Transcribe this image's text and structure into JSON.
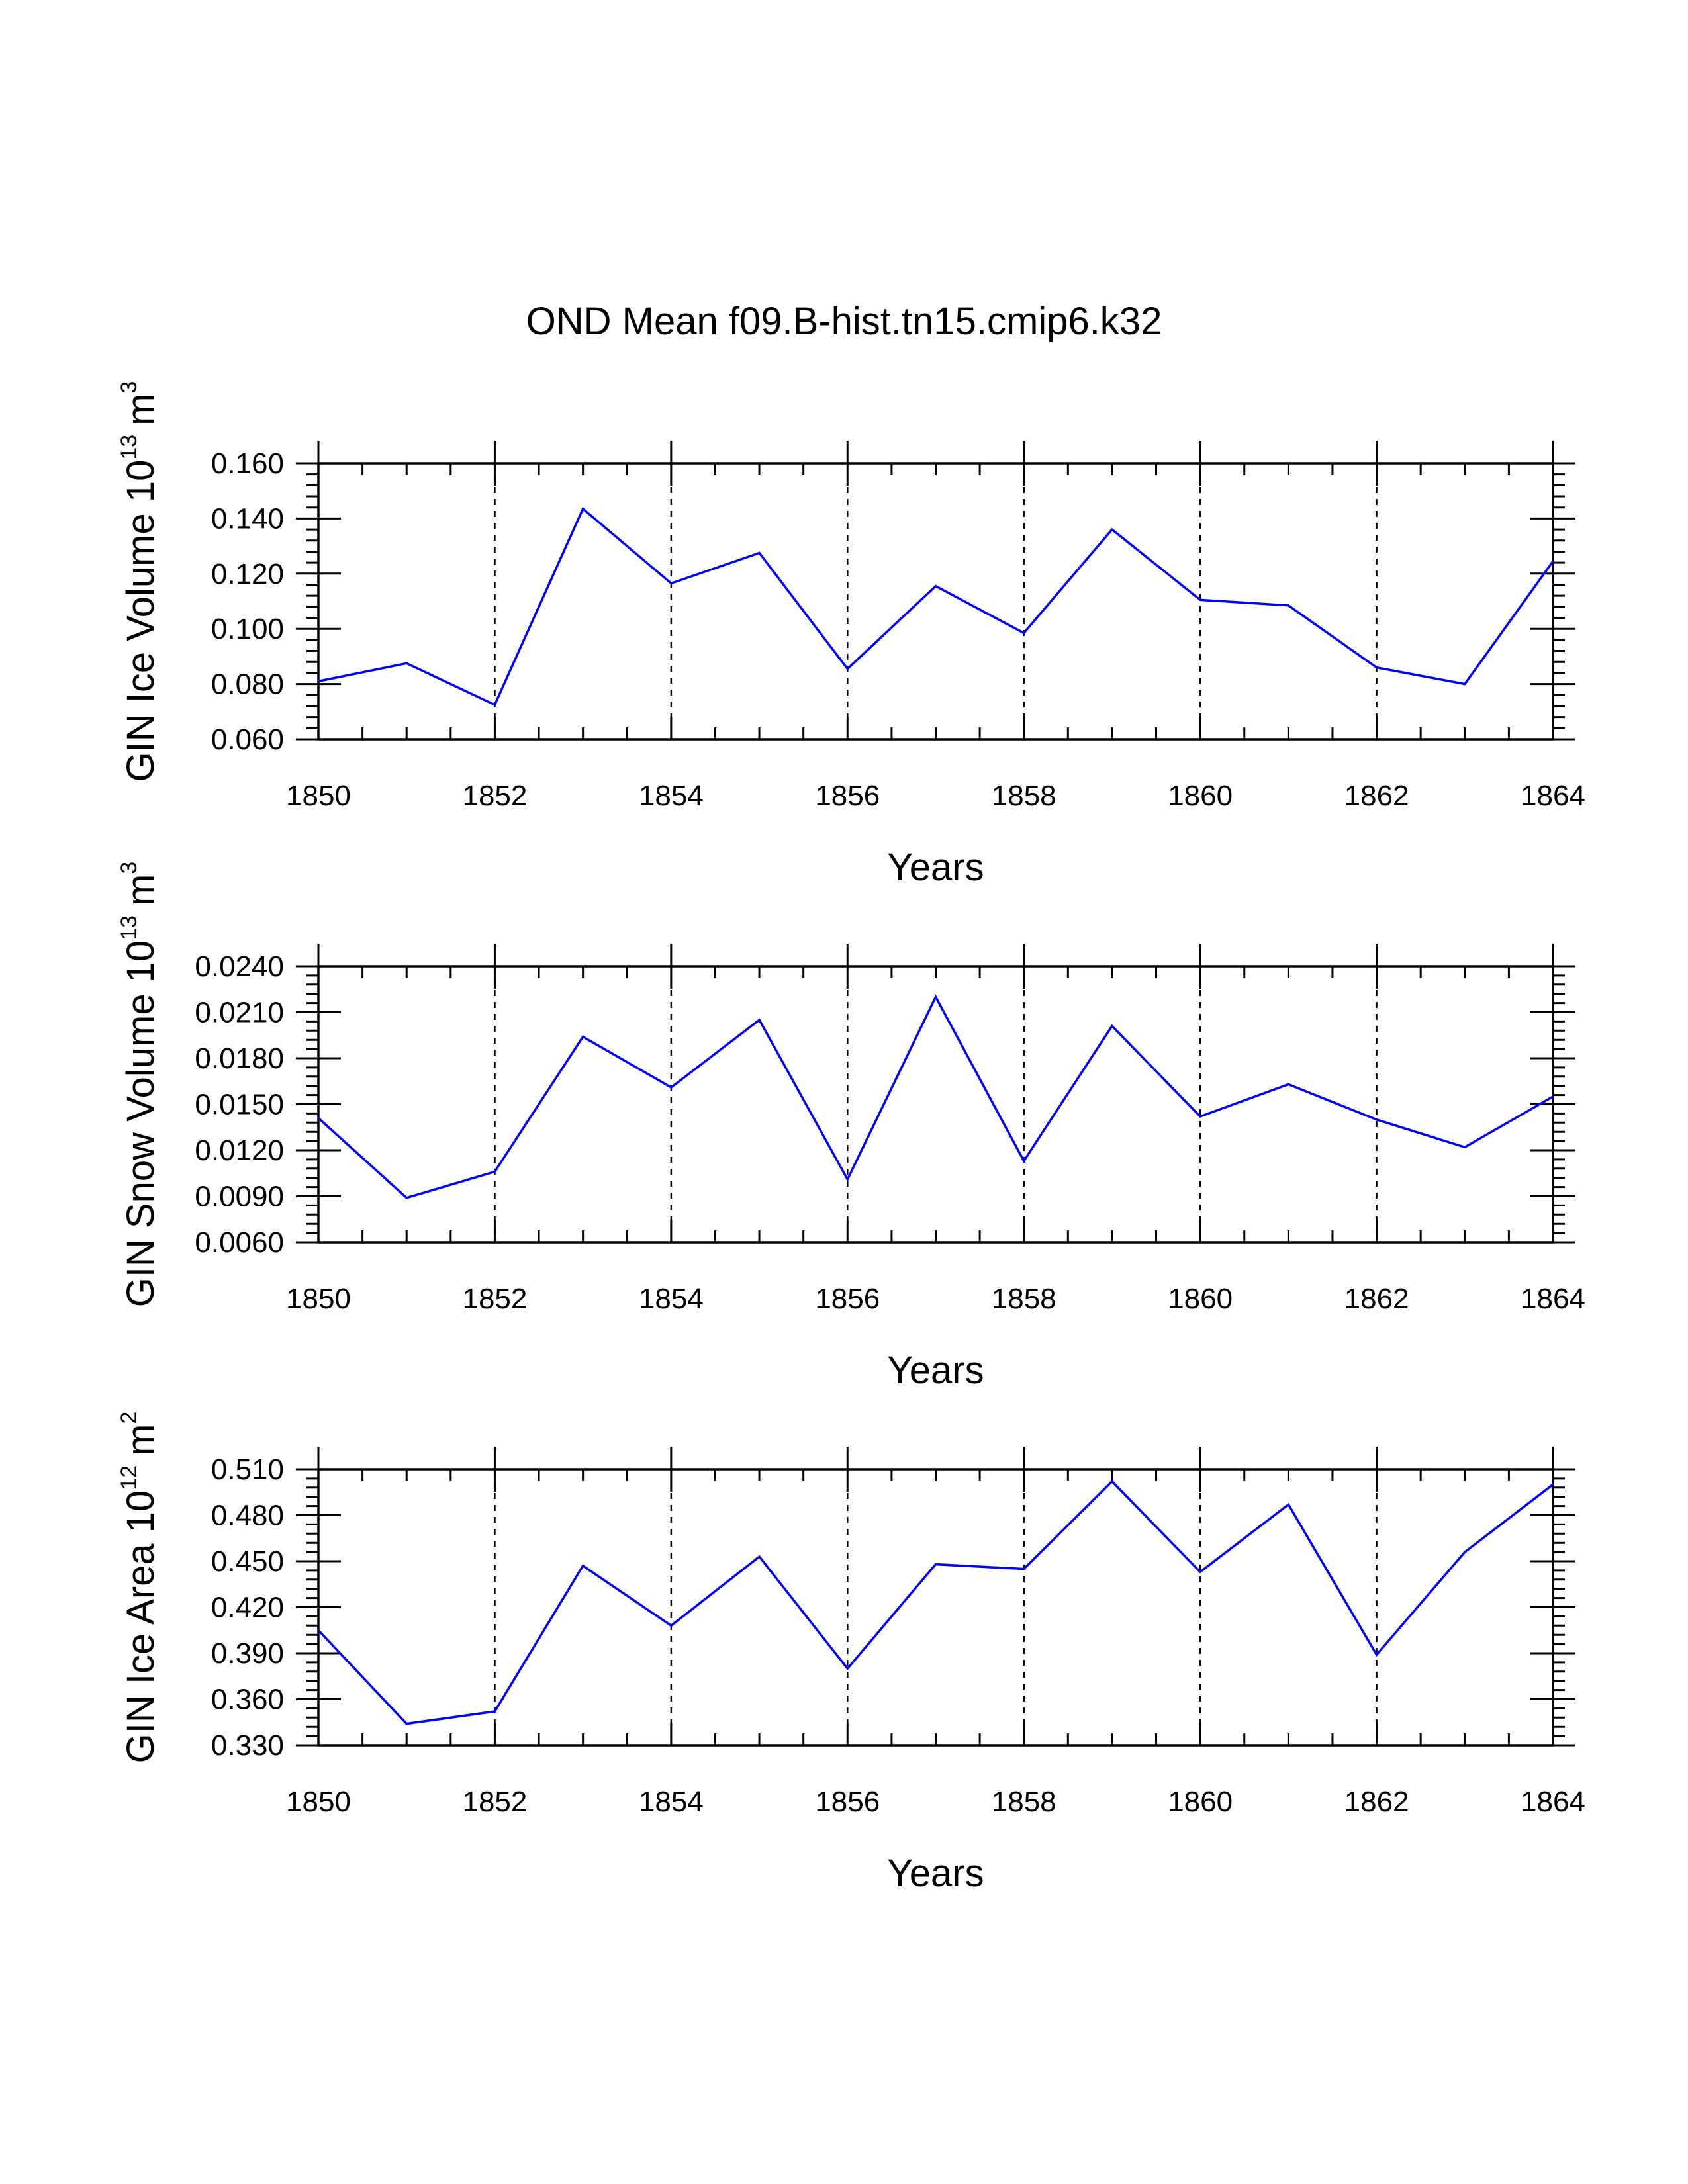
{
  "figure": {
    "title": "OND Mean f09.B-hist.tn15.cmip6.k32"
  },
  "chart_data": [
    {
      "type": "line",
      "title": "",
      "xlabel": "Years",
      "ylabel": {
        "base": "GIN Ice Volume 10",
        "exponent": "13",
        "unit": "m",
        "unit_exponent": "3"
      },
      "x": [
        1850,
        1851,
        1852,
        1853,
        1854,
        1855,
        1856,
        1857,
        1858,
        1859,
        1860,
        1861,
        1862,
        1863,
        1864
      ],
      "series": [
        {
          "name": "GIN Ice Volume",
          "color": "#0000ff",
          "values": [
            0.081,
            0.0875,
            0.0725,
            0.1435,
            0.1165,
            0.1275,
            0.0855,
            0.1155,
            0.0985,
            0.136,
            0.1105,
            0.1085,
            0.086,
            0.08,
            0.1245
          ]
        }
      ],
      "xlim": [
        1850,
        1864
      ],
      "ylim": [
        0.06,
        0.16
      ],
      "xticks": [
        "1850",
        "1852",
        "1854",
        "1856",
        "1858",
        "1860",
        "1862",
        "1864"
      ],
      "yticks": [
        "0.060",
        "0.080",
        "0.100",
        "0.120",
        "0.140",
        "0.160"
      ],
      "ytick_values": [
        0.06,
        0.08,
        0.1,
        0.12,
        0.14,
        0.16
      ],
      "yminor_step": 0.004,
      "grid": "x dashed"
    },
    {
      "type": "line",
      "title": "",
      "xlabel": "Years",
      "ylabel": {
        "base": "GIN Snow Volume 10",
        "exponent": "13",
        "unit": "m",
        "unit_exponent": "3"
      },
      "x": [
        1850,
        1851,
        1852,
        1853,
        1854,
        1855,
        1856,
        1857,
        1858,
        1859,
        1860,
        1861,
        1862,
        1863,
        1864
      ],
      "series": [
        {
          "name": "GIN Snow Volume",
          "color": "#0000ff",
          "values": [
            0.0141,
            0.0089,
            0.0106,
            0.0194,
            0.0161,
            0.0205,
            0.0101,
            0.022,
            0.0113,
            0.0201,
            0.0142,
            0.0163,
            0.014,
            0.0122,
            0.0155
          ]
        }
      ],
      "xlim": [
        1850,
        1864
      ],
      "ylim": [
        0.006,
        0.024
      ],
      "xticks": [
        "1850",
        "1852",
        "1854",
        "1856",
        "1858",
        "1860",
        "1862",
        "1864"
      ],
      "yticks": [
        "0.0060",
        "0.0090",
        "0.0120",
        "0.0150",
        "0.0180",
        "0.0210",
        "0.0240"
      ],
      "ytick_values": [
        0.006,
        0.009,
        0.012,
        0.015,
        0.018,
        0.021,
        0.024
      ],
      "yminor_step": 0.0006,
      "grid": "x dashed"
    },
    {
      "type": "line",
      "title": "",
      "xlabel": "Years",
      "ylabel": {
        "base": "GIN Ice Area 10",
        "exponent": "12",
        "unit": "m",
        "unit_exponent": "2"
      },
      "x": [
        1850,
        1851,
        1852,
        1853,
        1854,
        1855,
        1856,
        1857,
        1858,
        1859,
        1860,
        1861,
        1862,
        1863,
        1864
      ],
      "series": [
        {
          "name": "GIN Ice Area",
          "color": "#0000ff",
          "values": [
            0.405,
            0.344,
            0.352,
            0.447,
            0.408,
            0.453,
            0.38,
            0.448,
            0.445,
            0.502,
            0.443,
            0.487,
            0.389,
            0.456,
            0.5
          ]
        }
      ],
      "xlim": [
        1850,
        1864
      ],
      "ylim": [
        0.33,
        0.51
      ],
      "xticks": [
        "1850",
        "1852",
        "1854",
        "1856",
        "1858",
        "1860",
        "1862",
        "1864"
      ],
      "yticks": [
        "0.330",
        "0.360",
        "0.390",
        "0.420",
        "0.450",
        "0.480",
        "0.510"
      ],
      "ytick_values": [
        0.33,
        0.36,
        0.39,
        0.42,
        0.45,
        0.48,
        0.51
      ],
      "yminor_step": 0.006,
      "grid": "x dashed"
    }
  ]
}
